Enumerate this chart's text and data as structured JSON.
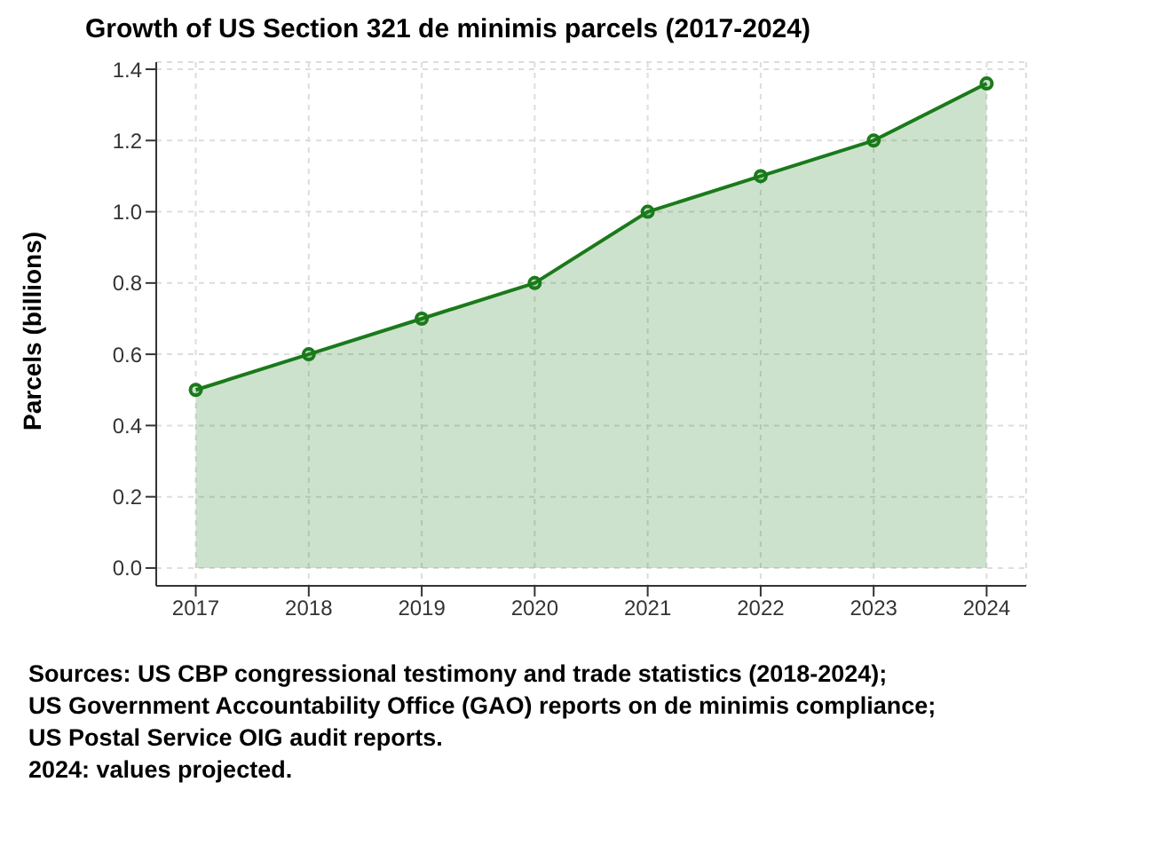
{
  "chart_data": {
    "type": "area",
    "title": "Growth of US Section 321 de minimis parcels (2017-2024)",
    "ylabel": "Parcels (billions)",
    "x": [
      2017,
      2018,
      2019,
      2020,
      2021,
      2022,
      2023,
      2024
    ],
    "series": [
      {
        "color": "#1a7a1a",
        "values": [
          0.5,
          0.6,
          0.7,
          0.8,
          1.0,
          1.1,
          1.2,
          1.36
        ]
      }
    ],
    "xlim": [
      2016.65,
      2024.35
    ],
    "xticks": [
      2017,
      2018,
      2019,
      2020,
      2021,
      2022,
      2023,
      2024
    ],
    "ylim": [
      -0.05,
      1.42
    ],
    "yticks": [
      {
        "value": 0,
        "label": "0.0"
      },
      0.2,
      0.4,
      0.6,
      0.8,
      {
        "value": 1,
        "label": "1.0"
      },
      1.2,
      1.4
    ],
    "grid": true,
    "marker": "circle",
    "line_style": "solid",
    "legend": false,
    "annotations": [
      "Sources: US CBP congressional testimony and trade statistics (2018-2024);",
      "US Government Accountability Office (GAO) reports on de minimis compliance;",
      "US Postal Service OIG audit reports.",
      "2024: values projected."
    ]
  }
}
